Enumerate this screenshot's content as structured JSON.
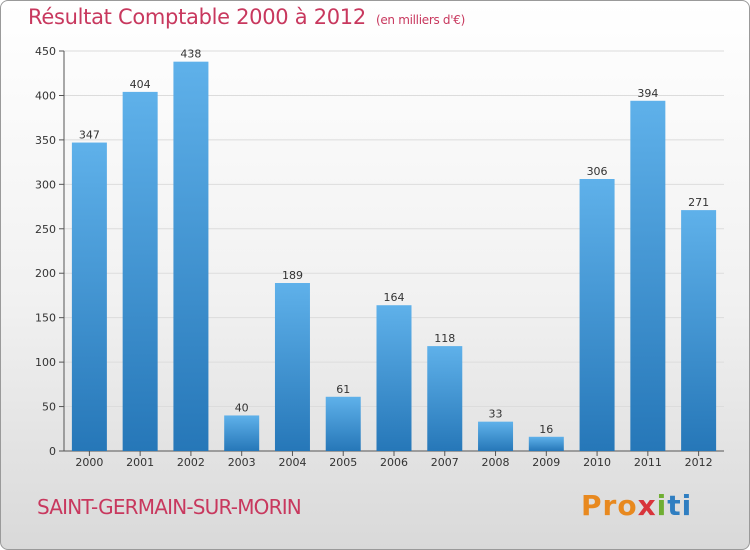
{
  "title": "Résultat Comptable 2000 à 2012",
  "subtitle": "(en milliers d'€)",
  "commune": "SAINT-GERMAIN-SUR-MORIN",
  "logo": {
    "p": "Pro",
    "x": "x",
    "i": "i",
    "t": "ti"
  },
  "colors": {
    "accent": "#c8385e",
    "bar_top": "#5fb1ea",
    "bar_bottom": "#2677b8"
  },
  "chart_data": {
    "type": "bar",
    "title": "Résultat Comptable 2000 à 2012",
    "subtitle": "(en milliers d'€)",
    "categories": [
      "2000",
      "2001",
      "2002",
      "2003",
      "2004",
      "2005",
      "2006",
      "2007",
      "2008",
      "2009",
      "2010",
      "2011",
      "2012"
    ],
    "values": [
      347,
      404,
      438,
      40,
      189,
      61,
      164,
      118,
      33,
      16,
      306,
      394,
      271
    ],
    "yticks": [
      0,
      50,
      100,
      150,
      200,
      250,
      300,
      350,
      400,
      450
    ],
    "ylim": [
      0,
      450
    ],
    "grid": true,
    "legend": "none"
  }
}
